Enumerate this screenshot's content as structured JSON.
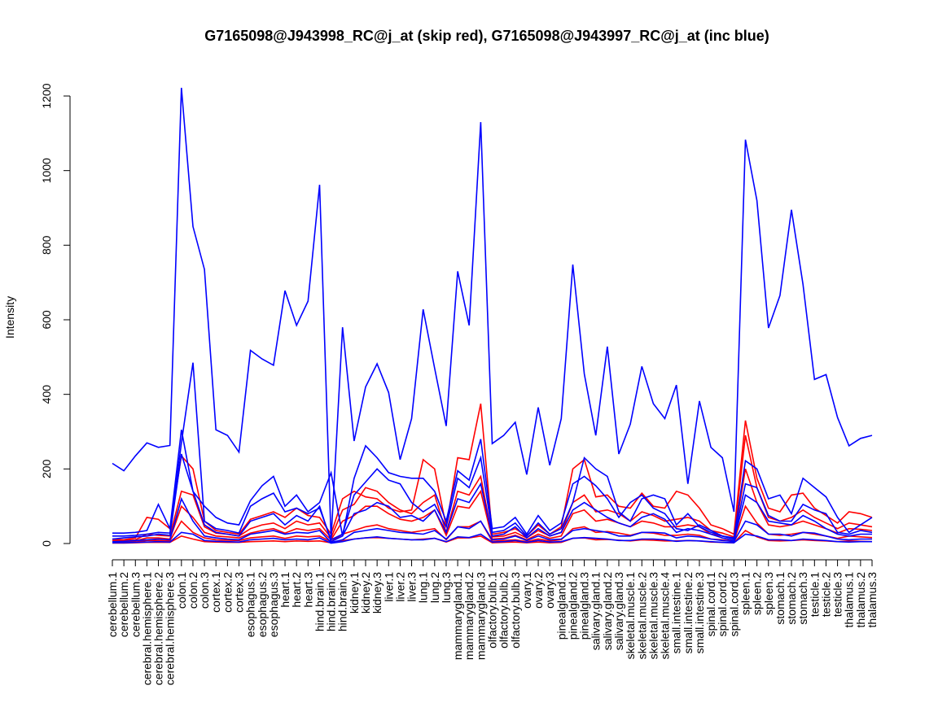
{
  "chart_data": {
    "type": "line",
    "title": "G7165098@J943998_RC@j_at (skip red), G7165098@J943997_RC@j_at (inc blue)",
    "xlabel": "",
    "ylabel": "Intensity",
    "ylim": [
      0,
      1220
    ],
    "yticks": [
      0,
      200,
      400,
      600,
      800,
      1000,
      1200
    ],
    "grid": false,
    "legend": "none",
    "colors": {
      "skip": "#ff0000",
      "inc": "#0000ff"
    },
    "categories": [
      "cerebellum.1",
      "cerebellum.2",
      "cerebellum.3",
      "cerebral.hemisphere.1",
      "cerebral.hemisphere.2",
      "cerebral.hemisphere.3",
      "colon.1",
      "colon.2",
      "colon.3",
      "cortex.1",
      "cortex.2",
      "cortex.3",
      "esophagus.1",
      "esophagus.2",
      "esophagus.3",
      "heart.1",
      "heart.2",
      "heart.3",
      "hind.brain.1",
      "hind.brain.2",
      "hind.brain.3",
      "kidney.1",
      "kidney.2",
      "kidney.3",
      "liver.1",
      "liver.2",
      "liver.3",
      "lung.1",
      "lung.2",
      "lung.3",
      "mammarygland.1",
      "mammarygland.2",
      "mammarygland.3",
      "olfactory.bulb.1",
      "olfactory.bulb.2",
      "olfactory.bulb.3",
      "ovary.1",
      "ovary.2",
      "ovary.3",
      "pinealgland.1",
      "pinealgland.2",
      "pinealgland.3",
      "salivary.gland.1",
      "salivary.gland.2",
      "salivary.gland.3",
      "skeletal.muscle.1",
      "skeletal.muscle.2",
      "skeletal.muscle.3",
      "skeletal.muscle.4",
      "small.intestine.1",
      "small.intestine.2",
      "small.intestine.3",
      "spinal.cord.1",
      "spinal.cord.2",
      "spinal.cord.3",
      "spleen.1",
      "spleen.2",
      "spleen.3",
      "stomach.1",
      "stomach.2",
      "stomach.3",
      "testicle.1",
      "testicle.2",
      "testicle.3",
      "thalamus.1",
      "thalamus.2",
      "thalamus.3"
    ],
    "series": [
      {
        "group": "inc",
        "values": [
          215,
          195,
          235,
          270,
          258,
          263,
          1222,
          850,
          735,
          305,
          290,
          245,
          518,
          495,
          478,
          678,
          585,
          650,
          962,
          10,
          580,
          275,
          420,
          482,
          405,
          225,
          335,
          628,
          470,
          315,
          730,
          585,
          1130,
          268,
          290,
          325,
          185,
          365,
          210,
          335,
          748,
          455,
          290,
          528,
          240,
          320,
          475,
          375,
          335,
          425,
          160,
          382,
          258,
          230,
          85,
          1083,
          920,
          578,
          665,
          895,
          695,
          440,
          453,
          338,
          262,
          282,
          290
        ]
      },
      {
        "group": "inc",
        "values": [
          28,
          28,
          30,
          35,
          105,
          40,
          305,
          140,
          100,
          70,
          55,
          50,
          115,
          155,
          180,
          100,
          130,
          85,
          110,
          190,
          20,
          175,
          262,
          230,
          190,
          180,
          175,
          175,
          140,
          60,
          195,
          170,
          280,
          40,
          45,
          70,
          25,
          75,
          35,
          55,
          160,
          180,
          155,
          120,
          70,
          110,
          130,
          95,
          80,
          40,
          35,
          50,
          35,
          20,
          15,
          222,
          200,
          120,
          130,
          80,
          175,
          150,
          125,
          70,
          30,
          50,
          70
        ]
      },
      {
        "group": "inc",
        "values": [
          20,
          20,
          22,
          25,
          30,
          28,
          270,
          485,
          60,
          40,
          35,
          28,
          100,
          120,
          135,
          85,
          95,
          80,
          95,
          10,
          25,
          130,
          165,
          200,
          170,
          160,
          110,
          85,
          105,
          45,
          175,
          150,
          230,
          30,
          35,
          55,
          20,
          55,
          25,
          40,
          110,
          230,
          200,
          180,
          85,
          60,
          120,
          130,
          120,
          50,
          80,
          45,
          30,
          20,
          12,
          160,
          150,
          75,
          60,
          60,
          105,
          90,
          80,
          30,
          25,
          35,
          30
        ]
      },
      {
        "group": "inc",
        "values": [
          12,
          15,
          18,
          20,
          25,
          22,
          240,
          140,
          50,
          30,
          25,
          20,
          60,
          70,
          80,
          50,
          75,
          60,
          100,
          5,
          20,
          80,
          90,
          110,
          100,
          70,
          75,
          60,
          90,
          30,
          120,
          110,
          160,
          20,
          25,
          45,
          15,
          40,
          20,
          30,
          90,
          110,
          90,
          70,
          55,
          45,
          70,
          80,
          65,
          30,
          40,
          35,
          25,
          15,
          8,
          130,
          110,
          60,
          55,
          50,
          75,
          60,
          40,
          25,
          20,
          25,
          25
        ]
      },
      {
        "group": "inc",
        "values": [
          5,
          6,
          8,
          10,
          12,
          10,
          120,
          60,
          20,
          15,
          12,
          10,
          25,
          30,
          35,
          25,
          30,
          28,
          35,
          3,
          10,
          30,
          35,
          40,
          35,
          30,
          28,
          25,
          35,
          12,
          45,
          40,
          60,
          10,
          12,
          20,
          8,
          20,
          10,
          12,
          35,
          40,
          35,
          30,
          20,
          20,
          30,
          30,
          28,
          15,
          20,
          18,
          12,
          8,
          5,
          60,
          50,
          25,
          25,
          20,
          30,
          28,
          20,
          12,
          10,
          12,
          12
        ]
      },
      {
        "group": "inc",
        "values": [
          2,
          2,
          3,
          4,
          5,
          4,
          30,
          25,
          8,
          6,
          5,
          4,
          10,
          12,
          14,
          10,
          12,
          10,
          15,
          1,
          5,
          12,
          15,
          18,
          14,
          12,
          10,
          10,
          14,
          5,
          18,
          16,
          25,
          4,
          5,
          8,
          3,
          8,
          4,
          5,
          14,
          16,
          14,
          12,
          8,
          8,
          12,
          12,
          10,
          6,
          8,
          7,
          5,
          3,
          2,
          25,
          20,
          10,
          10,
          8,
          12,
          10,
          8,
          5,
          4,
          5,
          5
        ]
      },
      {
        "group": "skip",
        "values": [
          12,
          10,
          15,
          70,
          65,
          40,
          235,
          200,
          60,
          35,
          30,
          25,
          65,
          75,
          85,
          70,
          95,
          75,
          70,
          25,
          120,
          140,
          125,
          120,
          95,
          85,
          90,
          225,
          200,
          45,
          230,
          225,
          375,
          25,
          30,
          40,
          20,
          50,
          25,
          45,
          200,
          225,
          125,
          130,
          100,
          95,
          135,
          100,
          95,
          140,
          130,
          95,
          50,
          40,
          25,
          330,
          175,
          95,
          85,
          130,
          135,
          95,
          75,
          55,
          85,
          80,
          70
        ]
      },
      {
        "group": "skip",
        "values": [
          8,
          8,
          10,
          25,
          22,
          20,
          140,
          130,
          45,
          28,
          25,
          20,
          40,
          50,
          55,
          40,
          60,
          50,
          55,
          15,
          90,
          105,
          150,
          140,
          110,
          90,
          80,
          110,
          130,
          30,
          140,
          130,
          180,
          18,
          20,
          30,
          15,
          35,
          20,
          30,
          110,
          130,
          85,
          90,
          80,
          60,
          85,
          75,
          60,
          65,
          70,
          60,
          35,
          28,
          18,
          290,
          150,
          70,
          60,
          70,
          90,
          70,
          55,
          40,
          55,
          50,
          45
        ]
      },
      {
        "group": "skip",
        "values": [
          5,
          5,
          7,
          15,
          15,
          12,
          100,
          70,
          30,
          20,
          18,
          15,
          28,
          35,
          40,
          28,
          40,
          35,
          40,
          10,
          60,
          75,
          100,
          100,
          80,
          65,
          60,
          70,
          90,
          22,
          100,
          95,
          140,
          12,
          14,
          22,
          10,
          25,
          14,
          20,
          80,
          90,
          60,
          65,
          55,
          45,
          60,
          55,
          45,
          45,
          50,
          45,
          25,
          20,
          12,
          200,
          110,
          50,
          45,
          50,
          60,
          50,
          40,
          28,
          40,
          38,
          35
        ]
      },
      {
        "group": "skip",
        "values": [
          3,
          3,
          4,
          8,
          8,
          7,
          60,
          30,
          15,
          10,
          9,
          8,
          15,
          18,
          20,
          14,
          20,
          18,
          20,
          5,
          25,
          35,
          45,
          50,
          40,
          35,
          30,
          35,
          40,
          10,
          45,
          45,
          60,
          6,
          8,
          10,
          5,
          12,
          7,
          10,
          40,
          45,
          30,
          32,
          28,
          22,
          30,
          28,
          22,
          22,
          25,
          22,
          12,
          10,
          6,
          100,
          55,
          25,
          22,
          25,
          30,
          25,
          20,
          14,
          20,
          18,
          16
        ]
      },
      {
        "group": "skip",
        "values": [
          1,
          1,
          2,
          3,
          3,
          3,
          20,
          12,
          5,
          4,
          3,
          3,
          5,
          6,
          7,
          5,
          7,
          6,
          7,
          2,
          8,
          12,
          15,
          16,
          14,
          12,
          10,
          12,
          14,
          4,
          15,
          15,
          20,
          2,
          3,
          4,
          2,
          4,
          2,
          3,
          14,
          15,
          10,
          11,
          9,
          7,
          10,
          9,
          7,
          7,
          8,
          7,
          4,
          3,
          2,
          35,
          18,
          8,
          7,
          8,
          10,
          8,
          7,
          5,
          7,
          6,
          5
        ]
      }
    ]
  }
}
